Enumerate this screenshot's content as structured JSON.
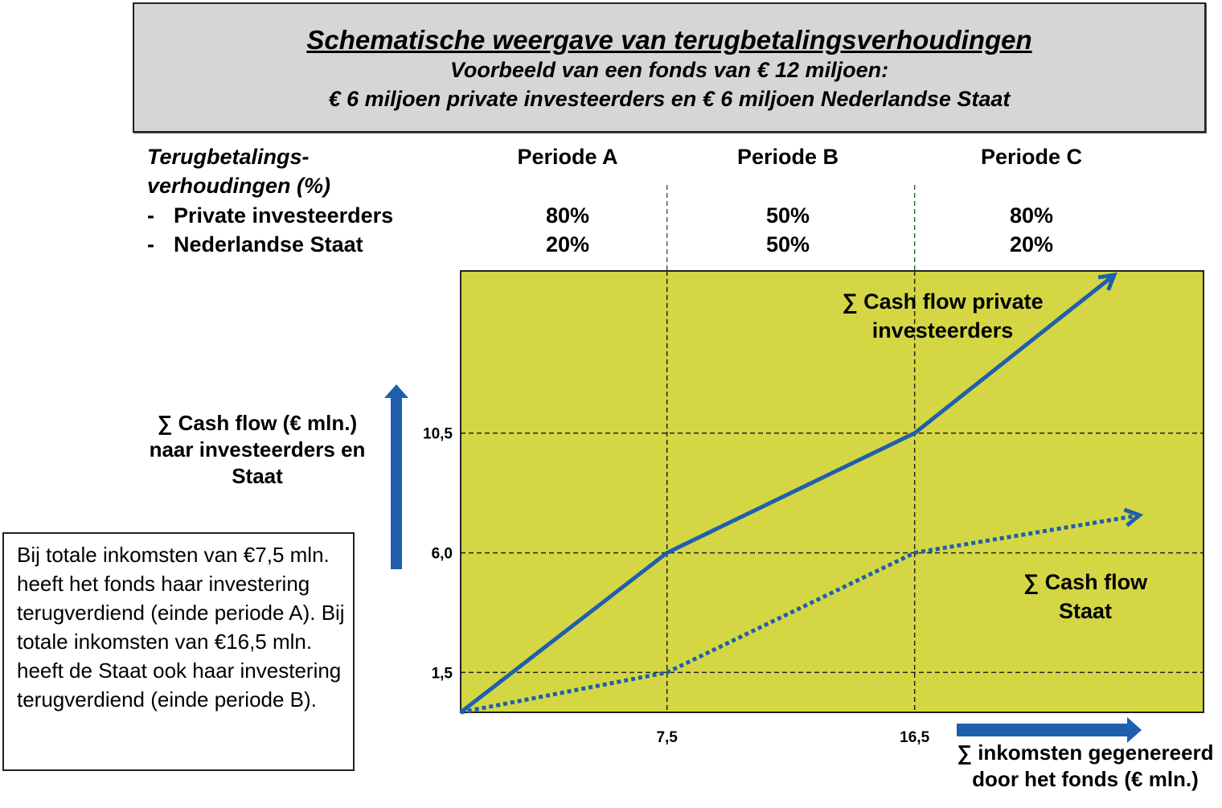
{
  "header": {
    "title": "Schematische weergave van terugbetalingsverhoudingen",
    "subtitle1": "Voorbeeld van een fonds van € 12 miljoen:",
    "subtitle2": "€ 6 miljoen private investeerders en € 6 miljoen Nederlandse Staat"
  },
  "table": {
    "label_line1": "Terugbetalings-",
    "label_line2": "verhoudingen (%)",
    "rows": [
      {
        "bullet": "-",
        "label": "Private investeerders",
        "values": [
          "80%",
          "50%",
          "80%"
        ]
      },
      {
        "bullet": "-",
        "label": "Nederlandse Staat",
        "values": [
          "20%",
          "50%",
          "20%"
        ]
      }
    ],
    "periods": [
      "Periode A",
      "Periode B",
      "Periode C"
    ]
  },
  "note": "Bij totale inkomsten van €7,5 mln. heeft het fonds haar investering terugverdiend (einde periode A). Bij totale inkomsten van €16,5 mln. heeft de Staat ook haar investering terugverdiend (einde periode B).",
  "chart_data": {
    "type": "line",
    "title": "",
    "xlabel": "∑ inkomsten gegenereerd door het fonds (€ mln.)",
    "ylabel": "∑ Cash flow (€ mln.) naar investeerders en Staat",
    "xticks": [
      "7,5",
      "16,5"
    ],
    "xtick_values": [
      7.5,
      16.5
    ],
    "yticks": [
      "1,5",
      "6,0",
      "10,5"
    ],
    "ytick_values": [
      1.5,
      6.0,
      10.5
    ],
    "xlim": [
      0,
      27
    ],
    "ylim": [
      0,
      16.6
    ],
    "grid": "dashed at tick values",
    "background_color": "#d4d743",
    "series": [
      {
        "name": "∑ Cash flow private investeerders",
        "style": "solid",
        "color": "#1f5fad",
        "x": [
          0,
          7.5,
          16.5,
          23.7
        ],
        "y": [
          0,
          6.0,
          10.5,
          16.4
        ]
      },
      {
        "name": "∑ Cash flow Staat",
        "style": "dotted",
        "color": "#1f5fad",
        "x": [
          0,
          7.5,
          16.5,
          24.6
        ],
        "y": [
          0,
          1.5,
          6.0,
          7.4
        ]
      }
    ],
    "series_label_lines": [
      [
        "∑ Cash flow private",
        "investeerders"
      ],
      [
        "∑ Cash flow",
        "Staat"
      ]
    ],
    "ylabel_lines": [
      "∑ Cash flow (€ mln.)",
      "naar investeerders en",
      "Staat"
    ],
    "xlabel_lines": [
      "∑ inkomsten gegenereerd",
      "door het fonds (€ mln.)"
    ]
  }
}
